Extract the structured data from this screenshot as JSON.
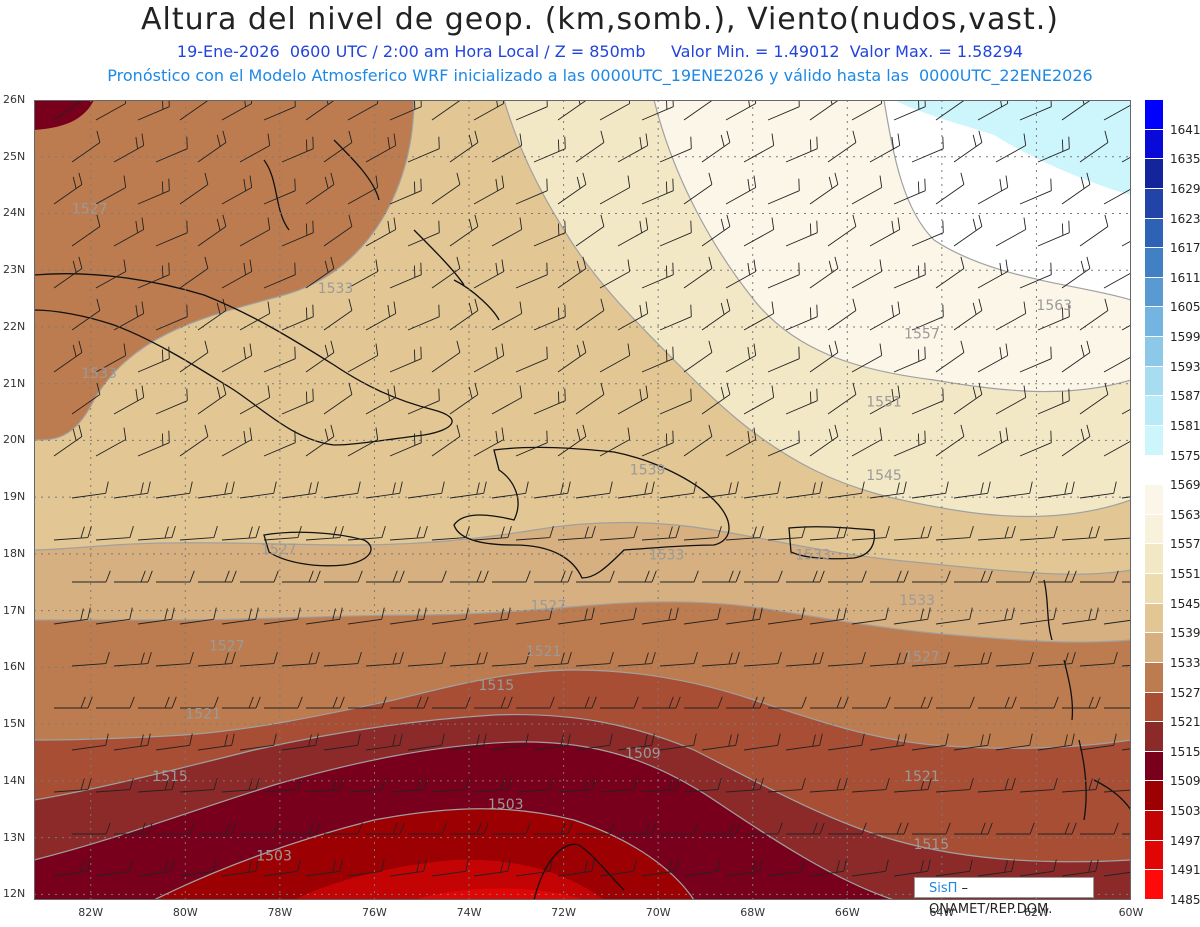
{
  "header": {
    "title": "Altura del nivel de geop. (km,somb.), Viento(nudos,vast.)",
    "date": "19-Ene-2026",
    "time": "0600 UTC / 2:00 am Hora Local / Z = 850mb",
    "min_label": "Valor Min. = 1.49012",
    "max_label": "Valor Max. = 1.58294",
    "model_line": "Pronóstico con el Modelo Atmosferico WRF inicializado a las 0000UTC_19ENE2026 y válido hasta las  0000UTC_22ENE2026"
  },
  "axes": {
    "lat_labels": [
      "26N",
      "25N",
      "24N",
      "23N",
      "22N",
      "21N",
      "20N",
      "19N",
      "18N",
      "17N",
      "16N",
      "15N",
      "14N",
      "13N",
      "12N"
    ],
    "lon_labels": [
      "82W",
      "80W",
      "78W",
      "76W",
      "74W",
      "72W",
      "70W",
      "68W",
      "66W",
      "64W",
      "62W",
      "60W"
    ]
  },
  "contour_labels": [
    {
      "text": "1527",
      "lon": -82.4,
      "lat": 24.0
    },
    {
      "text": "1533",
      "lon": -77.2,
      "lat": 22.6
    },
    {
      "text": "1533",
      "lon": -82.2,
      "lat": 21.1
    },
    {
      "text": "1557",
      "lon": -64.8,
      "lat": 21.8
    },
    {
      "text": "1563",
      "lon": -62.0,
      "lat": 22.3
    },
    {
      "text": "1551",
      "lon": -65.6,
      "lat": 20.6
    },
    {
      "text": "1545",
      "lon": -65.6,
      "lat": 19.3
    },
    {
      "text": "1539",
      "lon": -70.6,
      "lat": 19.4
    },
    {
      "text": "1533",
      "lon": -70.2,
      "lat": 17.9
    },
    {
      "text": "1533",
      "lon": -67.1,
      "lat": 17.9
    },
    {
      "text": "1527",
      "lon": -78.4,
      "lat": 18.0
    },
    {
      "text": "1527",
      "lon": -72.7,
      "lat": 17.0
    },
    {
      "text": "1533",
      "lon": -64.9,
      "lat": 17.1
    },
    {
      "text": "1527",
      "lon": -79.5,
      "lat": 16.3
    },
    {
      "text": "1527",
      "lon": -64.8,
      "lat": 16.1
    },
    {
      "text": "1521",
      "lon": -72.8,
      "lat": 16.2
    },
    {
      "text": "1521",
      "lon": -80.0,
      "lat": 15.1
    },
    {
      "text": "1515",
      "lon": -73.8,
      "lat": 15.6
    },
    {
      "text": "1509",
      "lon": -70.7,
      "lat": 14.4
    },
    {
      "text": "1521",
      "lon": -64.8,
      "lat": 14.0
    },
    {
      "text": "1515",
      "lon": -80.7,
      "lat": 14.0
    },
    {
      "text": "1503",
      "lon": -73.6,
      "lat": 13.5
    },
    {
      "text": "1515",
      "lon": -64.6,
      "lat": 12.8
    },
    {
      "text": "1503",
      "lon": -78.5,
      "lat": 12.6
    }
  ],
  "legend": {
    "values": [
      "1485",
      "1491",
      "1497",
      "1503",
      "1509",
      "1515",
      "1521",
      "1527",
      "1533",
      "1539",
      "1545",
      "1551",
      "1557",
      "1563",
      "1569",
      "1575",
      "1581",
      "1587",
      "1593",
      "1599",
      "1605",
      "1611",
      "1617",
      "1623",
      "1629",
      "1635",
      "1641"
    ],
    "colors": [
      "#ff0a0a",
      "#e00606",
      "#c40404",
      "#9c0003",
      "#78001c",
      "#8c2a2a",
      "#a84e35",
      "#bd7c4f",
      "#d6b080",
      "#e2c694",
      "#ecdcb0",
      "#f3e8c6",
      "#f8f1dc",
      "#fbf6e8",
      "#ffffff",
      "#ccf5fc",
      "#b8eaf8",
      "#a8dcf0",
      "#8cc8e8",
      "#74b4e0",
      "#5a9ad2",
      "#4280c4",
      "#2e62b6",
      "#2244a8",
      "#14249a",
      "#0a0ad8",
      "#0000ff"
    ]
  },
  "credit": {
    "brand": "SisΠ",
    "text": " – ONAMET/REP.DOM."
  }
}
